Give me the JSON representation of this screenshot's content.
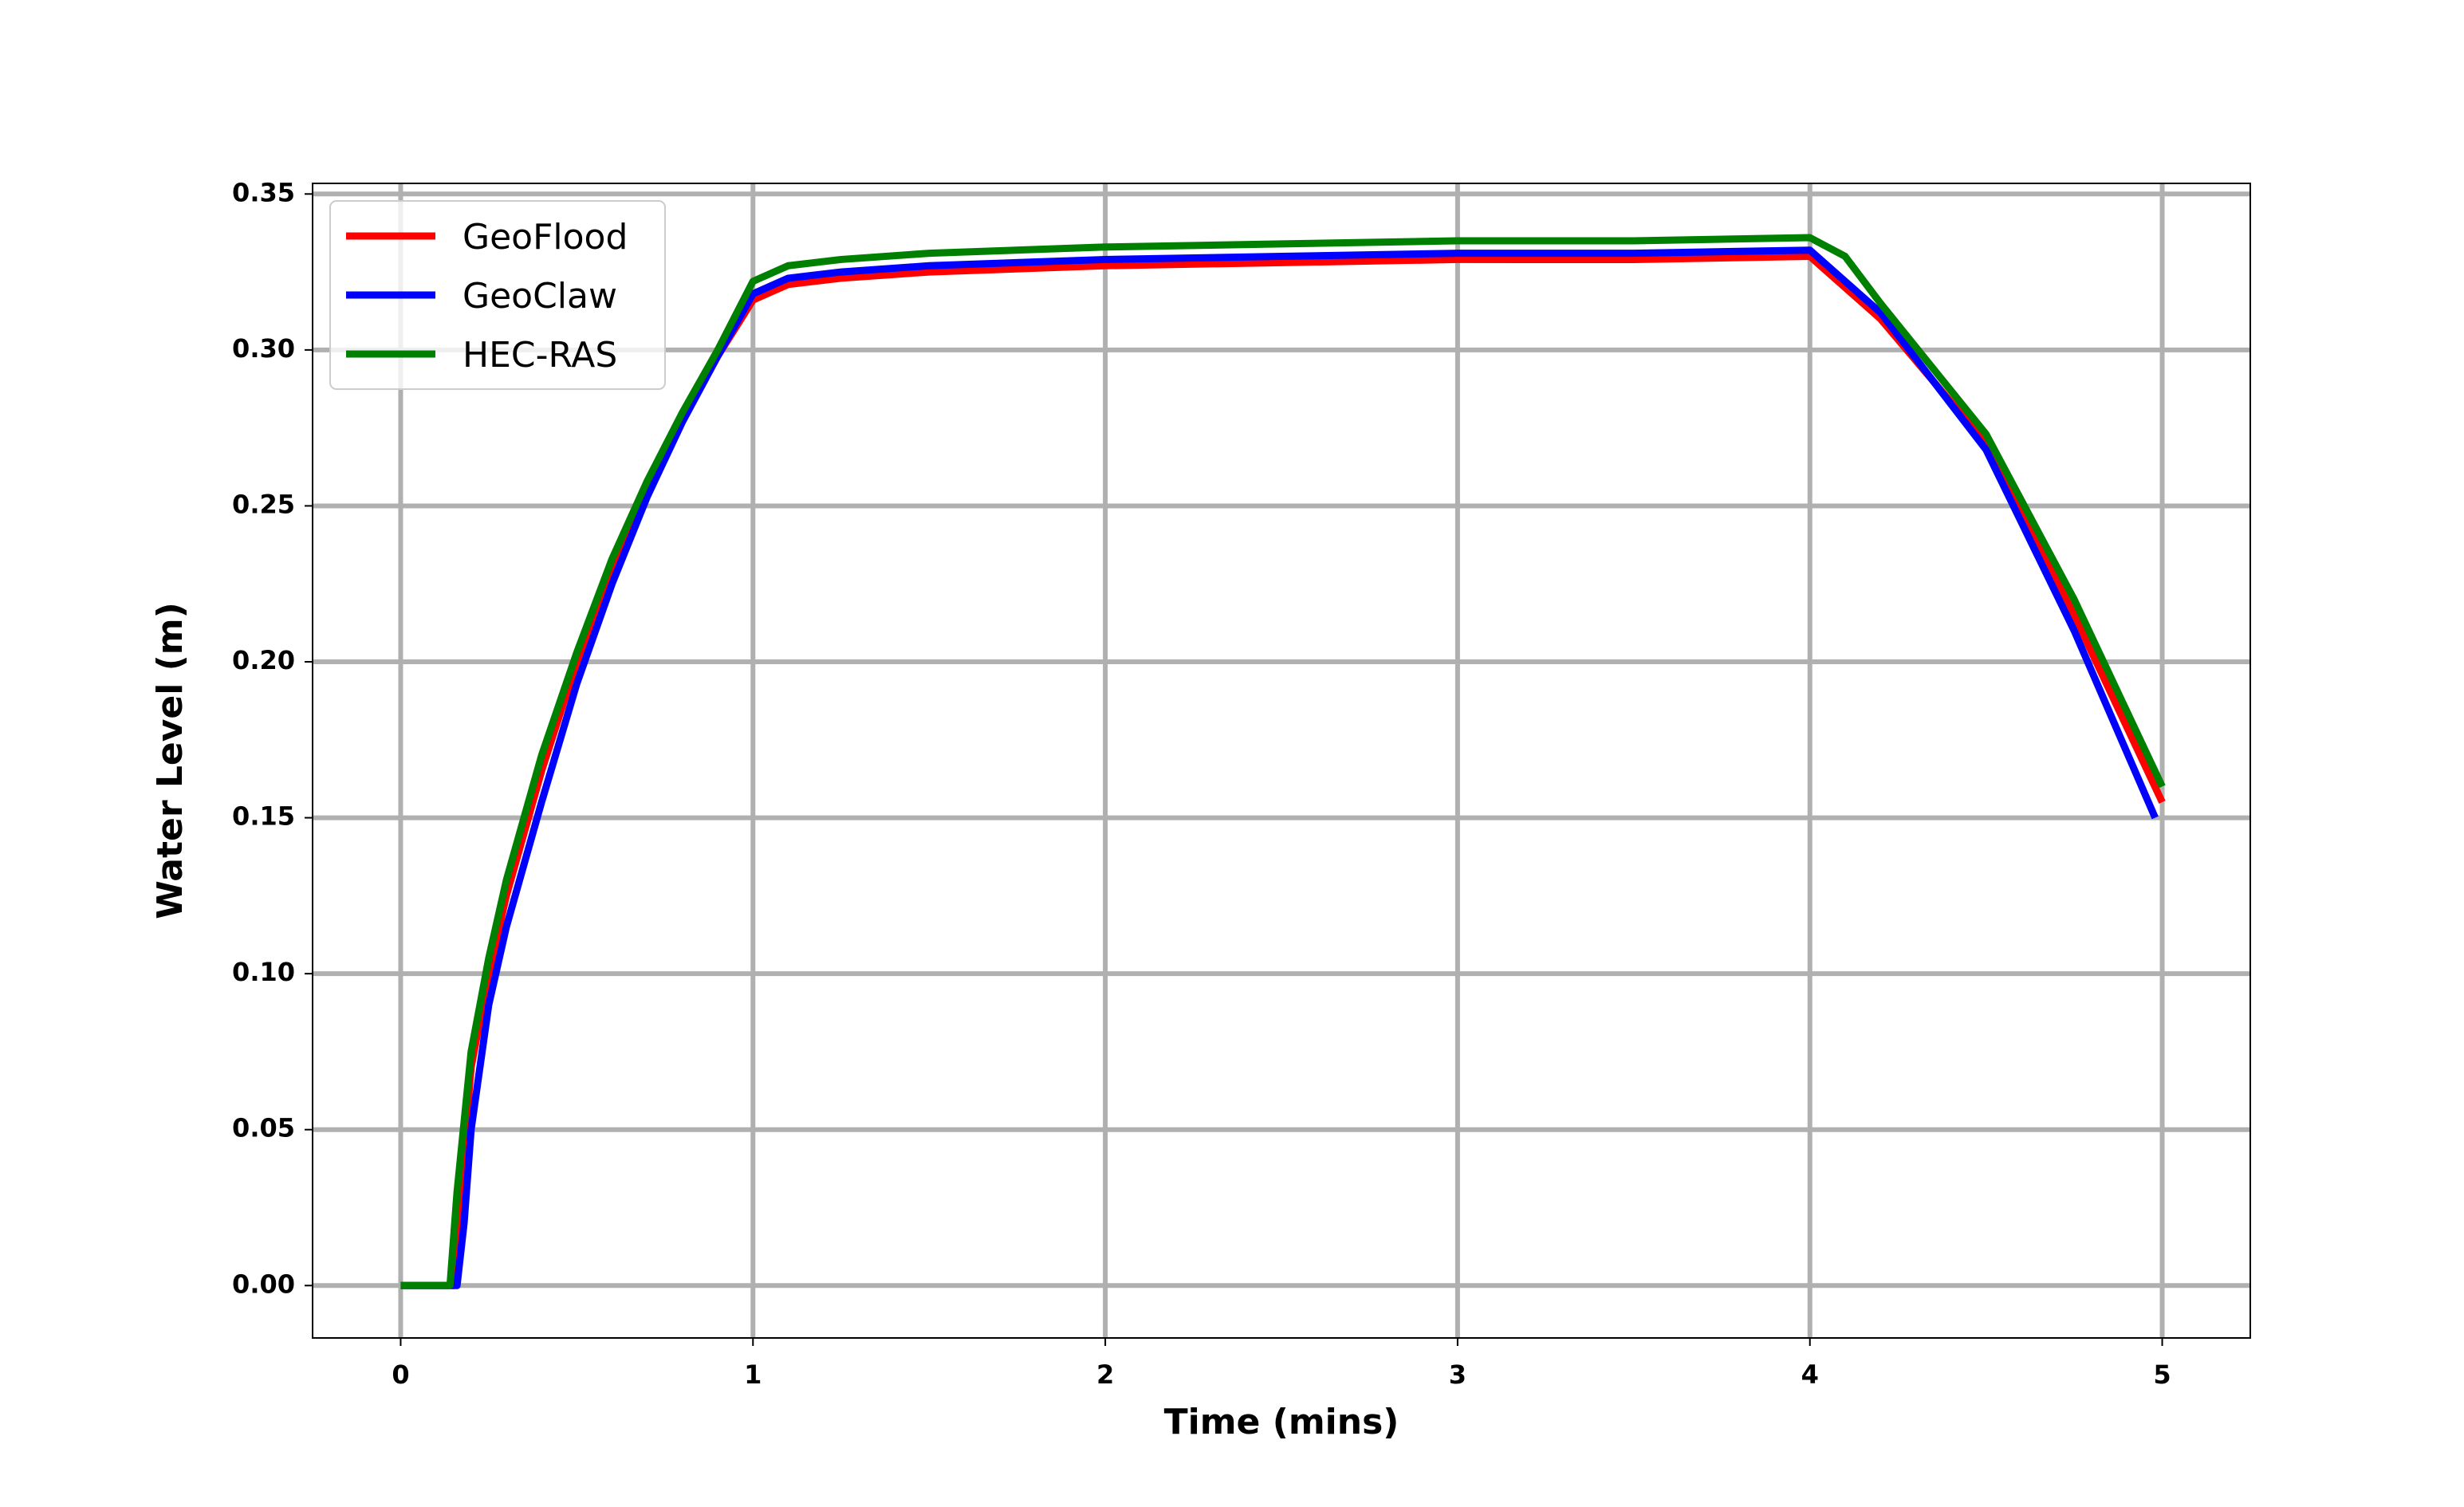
{
  "chart_data": {
    "type": "line",
    "xlabel": "Time (mins)",
    "ylabel": "Water Level (m)",
    "xlim": [
      -0.25,
      5.25
    ],
    "ylim": [
      -0.0168,
      0.3534
    ],
    "xticks": [
      0,
      1,
      2,
      3,
      4,
      5
    ],
    "yticks": [
      {
        "value": 0,
        "label": "0.00"
      },
      {
        "value": 0.05,
        "label": "0.05"
      },
      {
        "value": 0.1,
        "label": "0.10"
      },
      {
        "value": 0.15,
        "label": "0.15"
      },
      {
        "value": 0.2,
        "label": "0.20"
      },
      {
        "value": 0.25,
        "label": "0.25"
      },
      {
        "value": 0.3,
        "label": "0.30"
      },
      {
        "value": 0.35,
        "label": "0.35"
      }
    ],
    "grid": true,
    "legend": "upper left",
    "series": [
      {
        "name": "GeoFlood",
        "color": "#ff0000",
        "x": [
          0,
          0.15,
          0.17,
          0.2,
          0.25,
          0.3,
          0.4,
          0.5,
          0.6,
          0.7,
          0.8,
          0.9,
          1.0,
          1.1,
          1.25,
          1.5,
          2,
          2.5,
          3,
          3.5,
          4,
          4.2,
          4.5,
          4.75,
          5
        ],
        "values": [
          0,
          0,
          0.03,
          0.07,
          0.1,
          0.125,
          0.165,
          0.2,
          0.23,
          0.255,
          0.278,
          0.298,
          0.316,
          0.321,
          0.323,
          0.325,
          0.327,
          0.328,
          0.329,
          0.329,
          0.33,
          0.31,
          0.27,
          0.215,
          0.155
        ]
      },
      {
        "name": "GeoClaw",
        "color": "#0000ff",
        "x": [
          0,
          0.16,
          0.18,
          0.2,
          0.25,
          0.3,
          0.4,
          0.5,
          0.6,
          0.7,
          0.8,
          0.9,
          1.0,
          1.1,
          1.25,
          1.5,
          2,
          2.5,
          3,
          3.5,
          4,
          4.2,
          4.5,
          4.75,
          4.98
        ],
        "values": [
          0,
          0,
          0.02,
          0.05,
          0.09,
          0.115,
          0.155,
          0.193,
          0.225,
          0.253,
          0.277,
          0.298,
          0.318,
          0.323,
          0.325,
          0.327,
          0.329,
          0.33,
          0.331,
          0.331,
          0.332,
          0.312,
          0.268,
          0.21,
          0.15
        ]
      },
      {
        "name": "HEC-RAS",
        "color": "#008000",
        "x": [
          0,
          0.14,
          0.16,
          0.2,
          0.25,
          0.3,
          0.4,
          0.5,
          0.6,
          0.7,
          0.8,
          0.9,
          1.0,
          1.1,
          1.25,
          1.5,
          2,
          2.5,
          3,
          3.5,
          4,
          4.1,
          4.2,
          4.5,
          4.75,
          5
        ],
        "values": [
          0,
          0,
          0.03,
          0.075,
          0.105,
          0.13,
          0.17,
          0.203,
          0.233,
          0.258,
          0.28,
          0.3,
          0.322,
          0.327,
          0.329,
          0.331,
          0.333,
          0.334,
          0.335,
          0.335,
          0.336,
          0.33,
          0.315,
          0.273,
          0.22,
          0.16
        ]
      }
    ]
  }
}
